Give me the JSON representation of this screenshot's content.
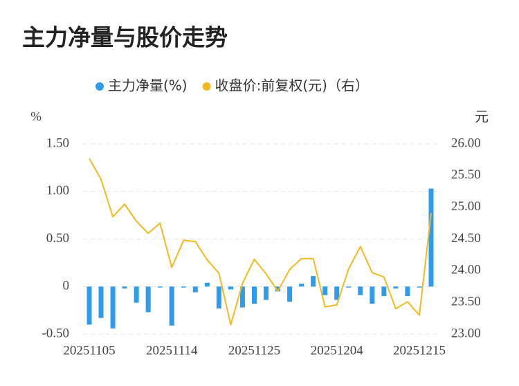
{
  "chart_data": {
    "type": "bar-line",
    "title": "主力净量与股价走势",
    "y_label": "%",
    "y2_label": "元",
    "categories": [
      "20251105",
      null,
      null,
      null,
      null,
      null,
      null,
      "20251114",
      null,
      null,
      null,
      null,
      null,
      null,
      "20251125",
      null,
      null,
      null,
      null,
      null,
      null,
      "20251204",
      null,
      null,
      null,
      null,
      null,
      null,
      "20251215",
      null
    ],
    "series": [
      {
        "name": "主力净量(%)",
        "type": "bar",
        "color": "#2f9bec",
        "values": [
          -0.4,
          -0.33,
          -0.44,
          -0.02,
          -0.17,
          -0.27,
          -0.01,
          -0.41,
          -0.01,
          -0.06,
          0.04,
          -0.23,
          -0.03,
          -0.22,
          -0.18,
          -0.14,
          -0.05,
          -0.16,
          0.03,
          0.11,
          -0.09,
          -0.14,
          -0.01,
          -0.09,
          -0.18,
          -0.1,
          -0.02,
          -0.1,
          -0.01,
          1.03
        ]
      },
      {
        "name": "收盘价:前复权(元)（右）",
        "type": "line",
        "axis": "y2",
        "color": "#f5b81d",
        "values": [
          25.77,
          25.44,
          24.85,
          25.05,
          24.78,
          24.59,
          24.75,
          24.05,
          24.48,
          24.46,
          24.17,
          23.96,
          23.15,
          23.8,
          24.18,
          23.95,
          23.68,
          24.02,
          24.19,
          24.19,
          23.43,
          23.46,
          24.03,
          24.38,
          23.97,
          23.9,
          23.4,
          23.51,
          23.3,
          24.91
        ]
      }
    ],
    "ylim": [
      -0.5,
      1.5
    ],
    "yticks": [
      {
        "value": -0.5,
        "label": "-0.50"
      },
      0,
      {
        "value": 0.5,
        "label": "0.50"
      },
      {
        "value": 1.0,
        "label": "1.00"
      },
      {
        "value": 1.5,
        "label": "1.50"
      }
    ],
    "y2lim": [
      23,
      26
    ],
    "y2ticks": [
      {
        "value": 23,
        "label": "23.00"
      },
      {
        "value": 23.5,
        "label": "23.50"
      },
      {
        "value": 24,
        "label": "24.00"
      },
      {
        "value": 24.5,
        "label": "24.50"
      },
      {
        "value": 25,
        "label": "25.00"
      },
      {
        "value": 25.5,
        "label": "25.50"
      },
      {
        "value": 26,
        "label": "26.00"
      }
    ],
    "grid": true,
    "legend": "top"
  }
}
